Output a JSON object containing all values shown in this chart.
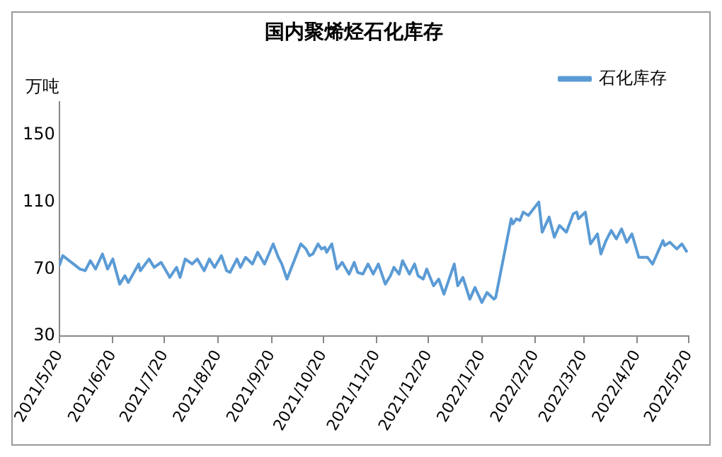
{
  "chart_data": {
    "type": "line",
    "title": "国内聚烯烃石化库存",
    "ylabel": "万吨",
    "legend": "top right",
    "grid": false,
    "marker": "none",
    "line_style": "solid",
    "ylim": [
      30,
      170
    ],
    "yticks": [
      30,
      70,
      110,
      150
    ],
    "xlim": [
      "2021-05-20",
      "2022-05-20"
    ],
    "xticks": [
      {
        "value": "2021-05-20",
        "label": "2021/5/20"
      },
      {
        "value": "2021-06-20",
        "label": "2021/6/20"
      },
      {
        "value": "2021-07-20",
        "label": "2021/7/20"
      },
      {
        "value": "2021-08-20",
        "label": "2021/8/20"
      },
      {
        "value": "2021-09-20",
        "label": "2021/9/20"
      },
      {
        "value": "2021-10-20",
        "label": "2021/10/20"
      },
      {
        "value": "2021-11-20",
        "label": "2021/11/20"
      },
      {
        "value": "2021-12-20",
        "label": "2021/12/20"
      },
      {
        "value": "2022-01-20",
        "label": "2022/1/20"
      },
      {
        "value": "2022-02-20",
        "label": "2022/2/20"
      },
      {
        "value": "2022-03-20",
        "label": "2022/3/20"
      },
      {
        "value": "2022-04-20",
        "label": "2022/4/20"
      },
      {
        "value": "2022-05-20",
        "label": "2022/5/20"
      }
    ],
    "x": [
      "2021-05-20",
      "2021-05-22",
      "2021-06-01",
      "2021-06-04",
      "2021-06-07",
      "2021-06-10",
      "2021-06-14",
      "2021-06-17",
      "2021-06-20",
      "2021-06-24",
      "2021-06-27",
      "2021-06-29",
      "2021-07-05",
      "2021-07-06",
      "2021-07-11",
      "2021-07-14",
      "2021-07-18",
      "2021-07-22",
      "2021-07-23",
      "2021-07-27",
      "2021-07-29",
      "2021-08-01",
      "2021-08-05",
      "2021-08-08",
      "2021-08-12",
      "2021-08-15",
      "2021-08-18",
      "2021-08-22",
      "2021-08-25",
      "2021-08-27",
      "2021-08-31",
      "2021-09-02",
      "2021-09-05",
      "2021-09-09",
      "2021-09-12",
      "2021-09-16",
      "2021-09-21",
      "2021-09-24",
      "2021-09-26",
      "2021-09-29",
      "2021-10-07",
      "2021-10-10",
      "2021-10-12",
      "2021-10-14",
      "2021-10-17",
      "2021-10-19",
      "2021-10-21",
      "2021-10-22",
      "2021-10-25",
      "2021-10-28",
      "2021-10-31",
      "2021-11-04",
      "2021-11-07",
      "2021-11-09",
      "2021-11-12",
      "2021-11-15",
      "2021-11-18",
      "2021-11-21",
      "2021-11-25",
      "2021-11-28",
      "2021-11-30",
      "2021-12-03",
      "2021-12-05",
      "2021-12-09",
      "2021-12-12",
      "2021-12-14",
      "2021-12-17",
      "2021-12-19",
      "2021-12-23",
      "2021-12-26",
      "2021-12-29",
      "2022-01-04",
      "2022-01-06",
      "2022-01-09",
      "2022-01-13",
      "2022-01-16",
      "2022-01-20",
      "2022-01-23",
      "2022-01-27",
      "2022-01-28",
      "2022-02-06",
      "2022-02-07",
      "2022-02-09",
      "2022-02-11",
      "2022-02-13",
      "2022-02-16",
      "2022-02-22",
      "2022-02-24",
      "2022-02-28",
      "2022-03-03",
      "2022-03-06",
      "2022-03-10",
      "2022-03-14",
      "2022-03-16",
      "2022-03-17",
      "2022-03-21",
      "2022-03-24",
      "2022-03-28",
      "2022-03-30",
      "2022-04-02",
      "2022-04-05",
      "2022-04-08",
      "2022-04-11",
      "2022-04-14",
      "2022-04-17",
      "2022-04-21",
      "2022-04-26",
      "2022-04-29",
      "2022-05-05",
      "2022-05-06",
      "2022-05-09",
      "2022-05-13",
      "2022-05-16",
      "2022-05-19"
    ],
    "series": [
      {
        "name": "石化库存",
        "color": "#5b9bd5",
        "values": [
          72,
          78,
          70,
          69,
          75,
          70,
          79,
          70,
          76,
          61,
          66,
          62,
          73,
          69,
          76,
          71,
          74,
          67,
          65,
          71,
          65,
          76,
          73,
          76,
          69,
          76,
          71,
          78,
          69,
          68,
          76,
          71,
          77,
          73,
          80,
          73,
          85,
          77,
          73,
          64,
          85,
          82,
          78,
          79,
          85,
          82,
          83,
          80,
          85,
          70,
          74,
          67,
          74,
          68,
          67,
          73,
          67,
          73,
          61,
          66,
          71,
          67,
          75,
          67,
          73,
          66,
          64,
          70,
          60,
          64,
          55,
          73,
          60,
          65,
          52,
          59,
          50,
          56,
          52,
          53,
          100,
          97,
          100,
          99,
          104,
          102,
          110,
          92,
          101,
          89,
          96,
          92,
          103,
          104,
          100,
          104,
          85,
          91,
          79,
          87,
          93,
          88,
          94,
          86,
          91,
          77,
          77,
          73,
          87,
          84,
          86,
          82,
          85,
          80
        ]
      }
    ]
  }
}
